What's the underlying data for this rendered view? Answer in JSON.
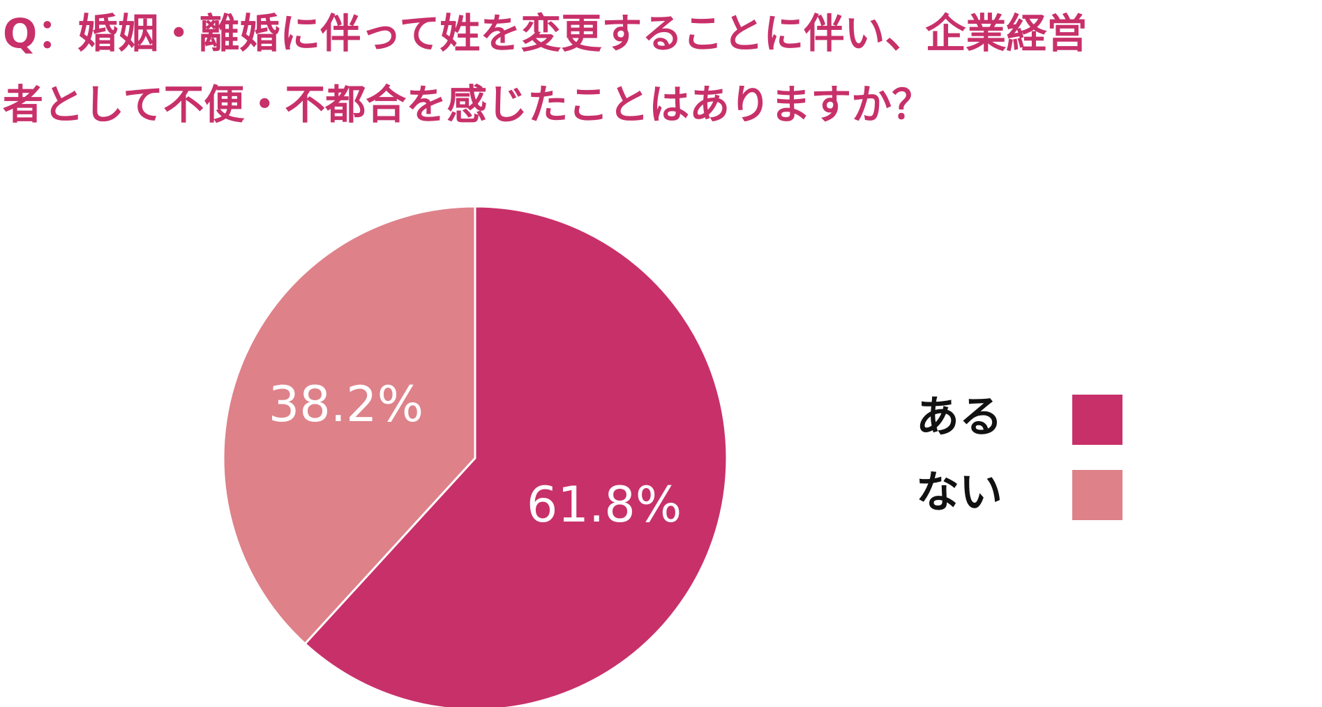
{
  "chart_data": {
    "type": "pie",
    "title": [
      "Q：婚姻・離婚に伴って姓を変更することに伴い、企業経営",
      "者として不便・不都合を感じたことはありますか？"
    ],
    "categories": [
      "ある",
      "ない"
    ],
    "values": [
      61.8,
      38.2
    ],
    "value_labels": [
      "61.8%",
      "38.2%"
    ],
    "colors": [
      "#c8306a",
      "#de8189"
    ],
    "title_color": "#c8306a",
    "legend": "right"
  }
}
